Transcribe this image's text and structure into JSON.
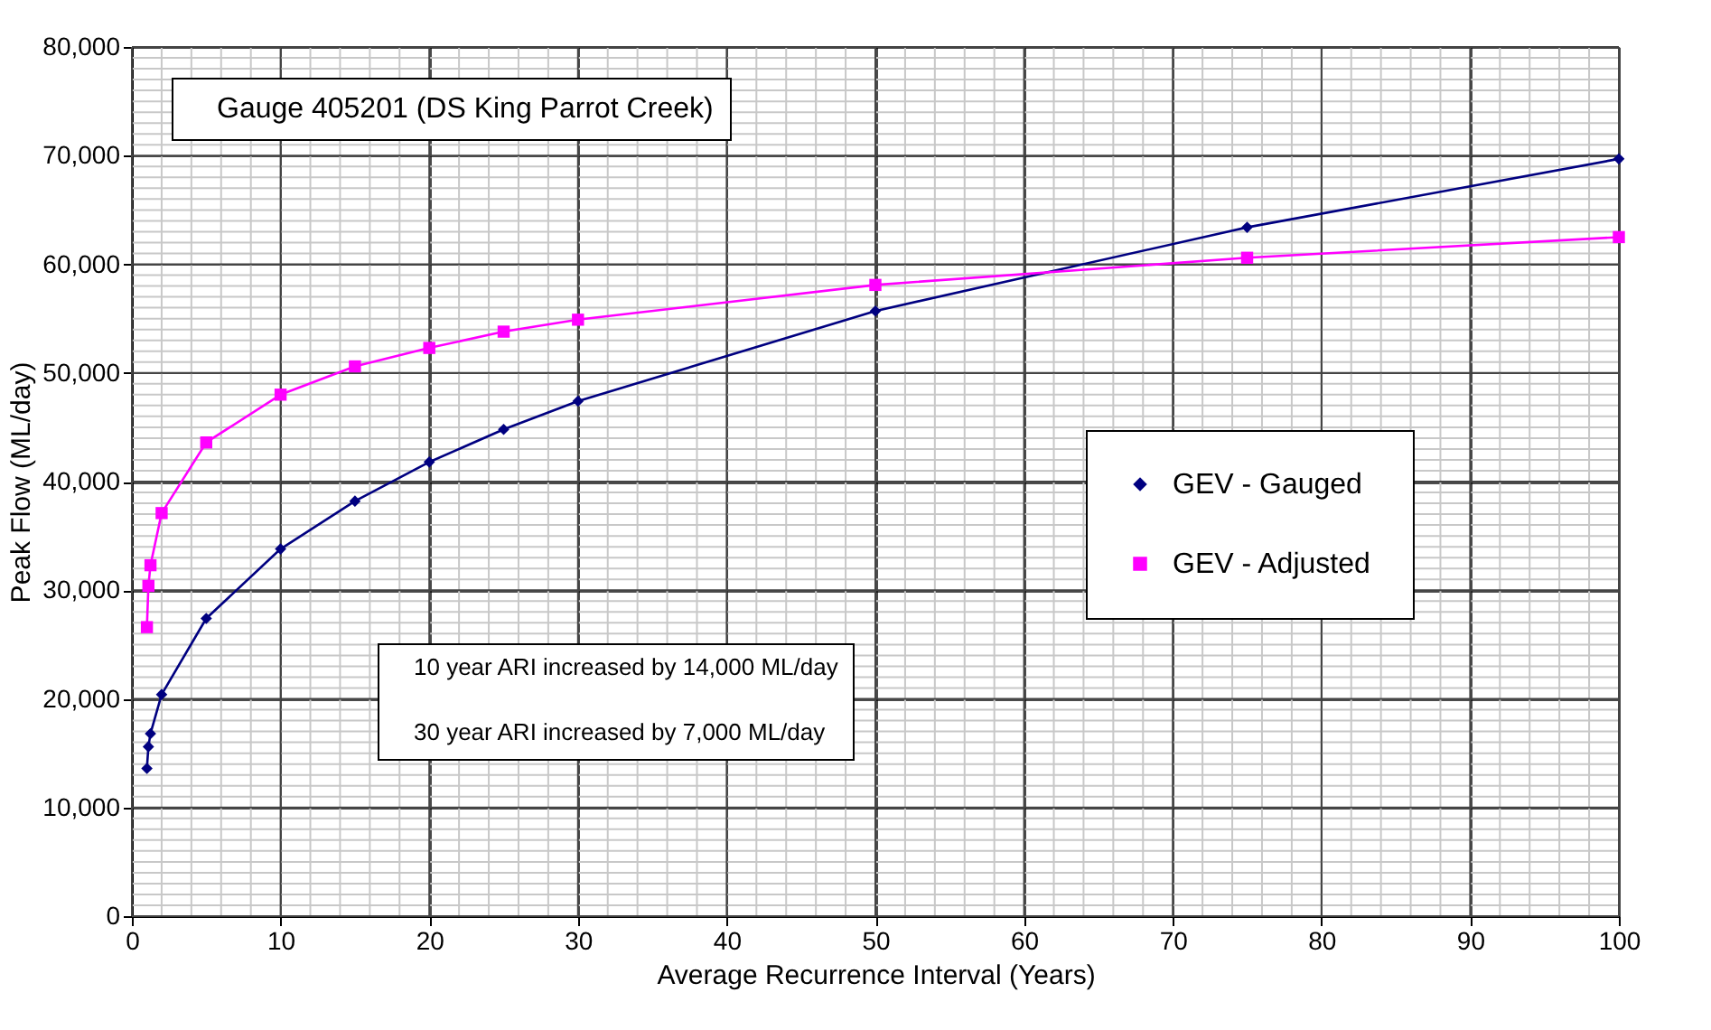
{
  "chart_data": {
    "type": "line",
    "xlabel": "Average Recurrence Interval (Years)",
    "ylabel": "Peak Flow (ML/day)",
    "annotations": [
      "Gauge 405201 (DS King Parrot Creek)",
      "10 year ARI increased by 14,000 ML/day",
      "30 year ARI increased by 7,000 ML/day"
    ],
    "xlim": [
      0,
      100
    ],
    "xticks": [
      0,
      10,
      20,
      30,
      40,
      50,
      60,
      70,
      80,
      90,
      100
    ],
    "ylim": [
      0,
      80000
    ],
    "yticks": [
      {
        "value": 0,
        "label": "0"
      },
      {
        "value": 10000,
        "label": "10,000"
      },
      {
        "value": 20000,
        "label": "20,000"
      },
      {
        "value": 30000,
        "label": "30,000"
      },
      {
        "value": 40000,
        "label": "40,000"
      },
      {
        "value": 50000,
        "label": "50,000"
      },
      {
        "value": 60000,
        "label": "60,000"
      },
      {
        "value": 70000,
        "label": "70,000"
      },
      {
        "value": 80000,
        "label": "80,000"
      }
    ],
    "grid": true,
    "legend": "right",
    "series": [
      {
        "name": "GEV - Gauged",
        "color": "#000080",
        "marker": "diamond",
        "x": [
          1.01,
          1.11,
          1.25,
          2,
          5,
          10,
          15,
          20,
          25,
          30,
          50,
          75,
          100
        ],
        "values": [
          13600,
          15600,
          16800,
          20400,
          27400,
          33800,
          38200,
          41800,
          44800,
          47400,
          55700,
          63400,
          69700
        ]
      },
      {
        "name": "GEV - Adjusted",
        "color": "#ff00ff",
        "marker": "square",
        "x": [
          1.01,
          1.11,
          1.25,
          2,
          5,
          10,
          15,
          20,
          25,
          30,
          50,
          75,
          100
        ],
        "values": [
          26600,
          30400,
          32300,
          37100,
          43600,
          48000,
          50600,
          52300,
          53800,
          54900,
          58100,
          60600,
          62500
        ]
      }
    ]
  }
}
